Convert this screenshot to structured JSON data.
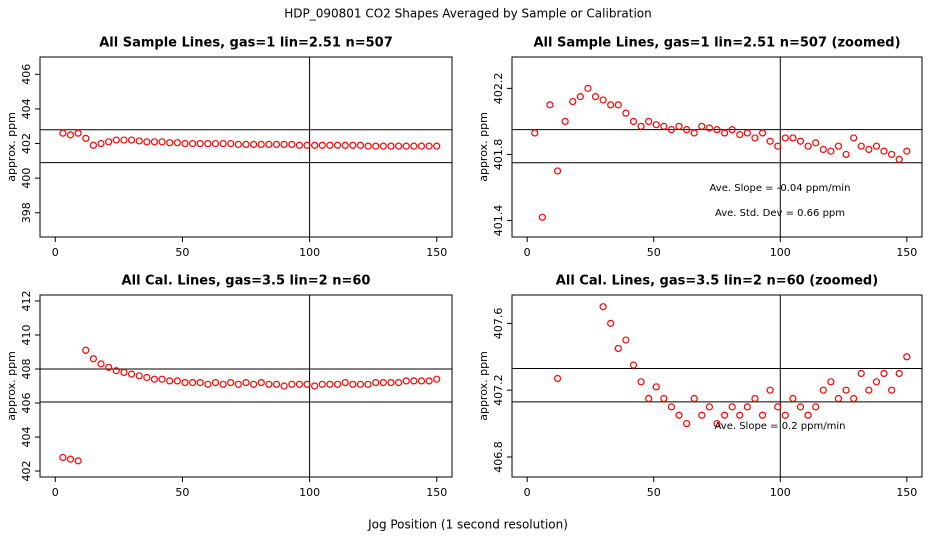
{
  "title": "HDP_090801  CO2 Shapes Averaged by Sample or Calibration",
  "xlabel": "Jog Position (1 second resolution)",
  "chart_data": [
    {
      "type": "scatter",
      "title": "All Sample Lines, gas=1 lin=2.51 n=507",
      "ylabel": "approx. ppm",
      "color": "#ff0000",
      "x": [
        3,
        6,
        9,
        12,
        15,
        18,
        21,
        24,
        27,
        30,
        33,
        36,
        39,
        42,
        45,
        48,
        51,
        54,
        57,
        60,
        63,
        66,
        69,
        72,
        75,
        78,
        81,
        84,
        87,
        90,
        93,
        96,
        99,
        102,
        105,
        108,
        111,
        114,
        117,
        120,
        123,
        126,
        129,
        132,
        135,
        138,
        141,
        144,
        147,
        150
      ],
      "values": [
        402.6,
        402.5,
        402.6,
        402.3,
        401.9,
        402.0,
        402.1,
        402.2,
        402.2,
        402.2,
        402.15,
        402.1,
        402.1,
        402.1,
        402.05,
        402.05,
        402.0,
        402.0,
        402.0,
        402.0,
        402.0,
        402.0,
        402.0,
        401.95,
        401.95,
        401.95,
        401.95,
        401.95,
        401.95,
        401.95,
        401.95,
        401.9,
        401.9,
        401.9,
        401.9,
        401.9,
        401.9,
        401.9,
        401.9,
        401.9,
        401.85,
        401.85,
        401.85,
        401.85,
        401.85,
        401.85,
        401.85,
        401.85,
        401.85,
        401.85
      ],
      "xlim": [
        -6,
        156
      ],
      "ylim": [
        396.6,
        407.0
      ],
      "xticks": [
        0,
        50,
        100,
        150
      ],
      "yticks": [
        398,
        400,
        402,
        404,
        406
      ],
      "hlines": [
        402.8,
        400.9
      ],
      "vlines": [
        100
      ],
      "annotations": []
    },
    {
      "type": "scatter",
      "title": "All Sample Lines, gas=1 lin=2.51 n=507 (zoomed)",
      "ylabel": "approx. ppm",
      "color": "#ff0000",
      "x": [
        3,
        6,
        9,
        12,
        15,
        18,
        21,
        24,
        27,
        30,
        33,
        36,
        39,
        42,
        45,
        48,
        51,
        54,
        57,
        60,
        63,
        66,
        69,
        72,
        75,
        78,
        81,
        84,
        87,
        90,
        93,
        96,
        99,
        102,
        105,
        108,
        111,
        114,
        117,
        120,
        123,
        126,
        129,
        132,
        135,
        138,
        141,
        144,
        147,
        150
      ],
      "values": [
        401.93,
        401.42,
        402.1,
        401.7,
        402.0,
        402.12,
        402.15,
        402.2,
        402.15,
        402.13,
        402.1,
        402.1,
        402.05,
        402.0,
        401.97,
        402.0,
        401.98,
        401.97,
        401.95,
        401.97,
        401.95,
        401.93,
        401.97,
        401.96,
        401.95,
        401.93,
        401.95,
        401.92,
        401.93,
        401.9,
        401.93,
        401.88,
        401.85,
        401.9,
        401.9,
        401.88,
        401.85,
        401.87,
        401.83,
        401.82,
        401.85,
        401.8,
        401.9,
        401.85,
        401.83,
        401.85,
        401.82,
        401.8,
        401.77,
        401.82
      ],
      "xlim": [
        -6,
        156
      ],
      "ylim": [
        401.3,
        402.39
      ],
      "xticks": [
        0,
        50,
        100,
        150
      ],
      "yticks": [
        401.4,
        401.8,
        402.2
      ],
      "hlines": [
        401.95,
        401.75
      ],
      "vlines": [
        100
      ],
      "annotations": [
        "Ave. Slope =  -0.04  ppm/min",
        "Ave. Std. Dev =  0.66  ppm"
      ]
    },
    {
      "type": "scatter",
      "title": "All Cal. Lines, gas=3.5 lin=2 n=60",
      "ylabel": "approx. ppm",
      "color": "#ff0000",
      "x": [
        3,
        6,
        9,
        12,
        15,
        18,
        21,
        24,
        27,
        30,
        33,
        36,
        39,
        42,
        45,
        48,
        51,
        54,
        57,
        60,
        63,
        66,
        69,
        72,
        75,
        78,
        81,
        84,
        87,
        90,
        93,
        96,
        99,
        102,
        105,
        108,
        111,
        114,
        117,
        120,
        123,
        126,
        129,
        132,
        135,
        138,
        141,
        144,
        147,
        150
      ],
      "values": [
        402.8,
        402.7,
        402.6,
        409.1,
        408.6,
        408.3,
        408.1,
        407.9,
        407.8,
        407.7,
        407.6,
        407.5,
        407.4,
        407.4,
        407.3,
        407.3,
        407.2,
        407.2,
        407.2,
        407.1,
        407.2,
        407.1,
        407.2,
        407.1,
        407.2,
        407.1,
        407.2,
        407.1,
        407.1,
        407.0,
        407.1,
        407.1,
        407.1,
        407.0,
        407.1,
        407.1,
        407.1,
        407.2,
        407.1,
        407.1,
        407.1,
        407.2,
        407.2,
        407.2,
        407.2,
        407.3,
        407.3,
        407.3,
        407.3,
        407.4
      ],
      "xlim": [
        -6,
        156
      ],
      "ylim": [
        401.65,
        412.35
      ],
      "xticks": [
        0,
        50,
        100,
        150
      ],
      "yticks": [
        402,
        404,
        406,
        408,
        410,
        412
      ],
      "hlines": [
        408.0,
        406.06
      ],
      "vlines": [
        100
      ],
      "annotations": []
    },
    {
      "type": "scatter",
      "title": "All Cal. Lines, gas=3.5 lin=2 n=60 (zoomed)",
      "ylabel": "approx. ppm",
      "color": "#ff0000",
      "x": [
        3,
        6,
        9,
        12,
        15,
        18,
        21,
        24,
        27,
        30,
        33,
        36,
        39,
        42,
        45,
        48,
        51,
        54,
        57,
        60,
        63,
        66,
        69,
        72,
        75,
        78,
        81,
        84,
        87,
        90,
        93,
        96,
        99,
        102,
        105,
        108,
        111,
        114,
        117,
        120,
        123,
        126,
        129,
        132,
        135,
        138,
        141,
        144,
        147,
        150
      ],
      "values": [
        null,
        null,
        null,
        407.27,
        null,
        null,
        null,
        null,
        null,
        407.7,
        407.6,
        407.45,
        407.5,
        407.35,
        407.25,
        407.15,
        407.22,
        407.15,
        407.1,
        407.05,
        407.0,
        407.15,
        407.05,
        407.1,
        407.0,
        407.05,
        407.1,
        407.05,
        407.1,
        407.15,
        407.05,
        407.2,
        407.1,
        407.05,
        407.15,
        407.1,
        407.05,
        407.1,
        407.2,
        407.25,
        407.15,
        407.2,
        407.15,
        407.3,
        407.2,
        407.25,
        407.3,
        407.2,
        407.3,
        407.4
      ],
      "xlim": [
        -6,
        156
      ],
      "ylim": [
        406.68,
        407.77
      ],
      "xticks": [
        0,
        50,
        100,
        150
      ],
      "yticks": [
        406.8,
        407.2,
        407.6
      ],
      "hlines": [
        407.33,
        407.13
      ],
      "vlines": [
        100
      ],
      "annotations": [
        "Ave. Slope = 0.2  ppm/min"
      ]
    }
  ]
}
